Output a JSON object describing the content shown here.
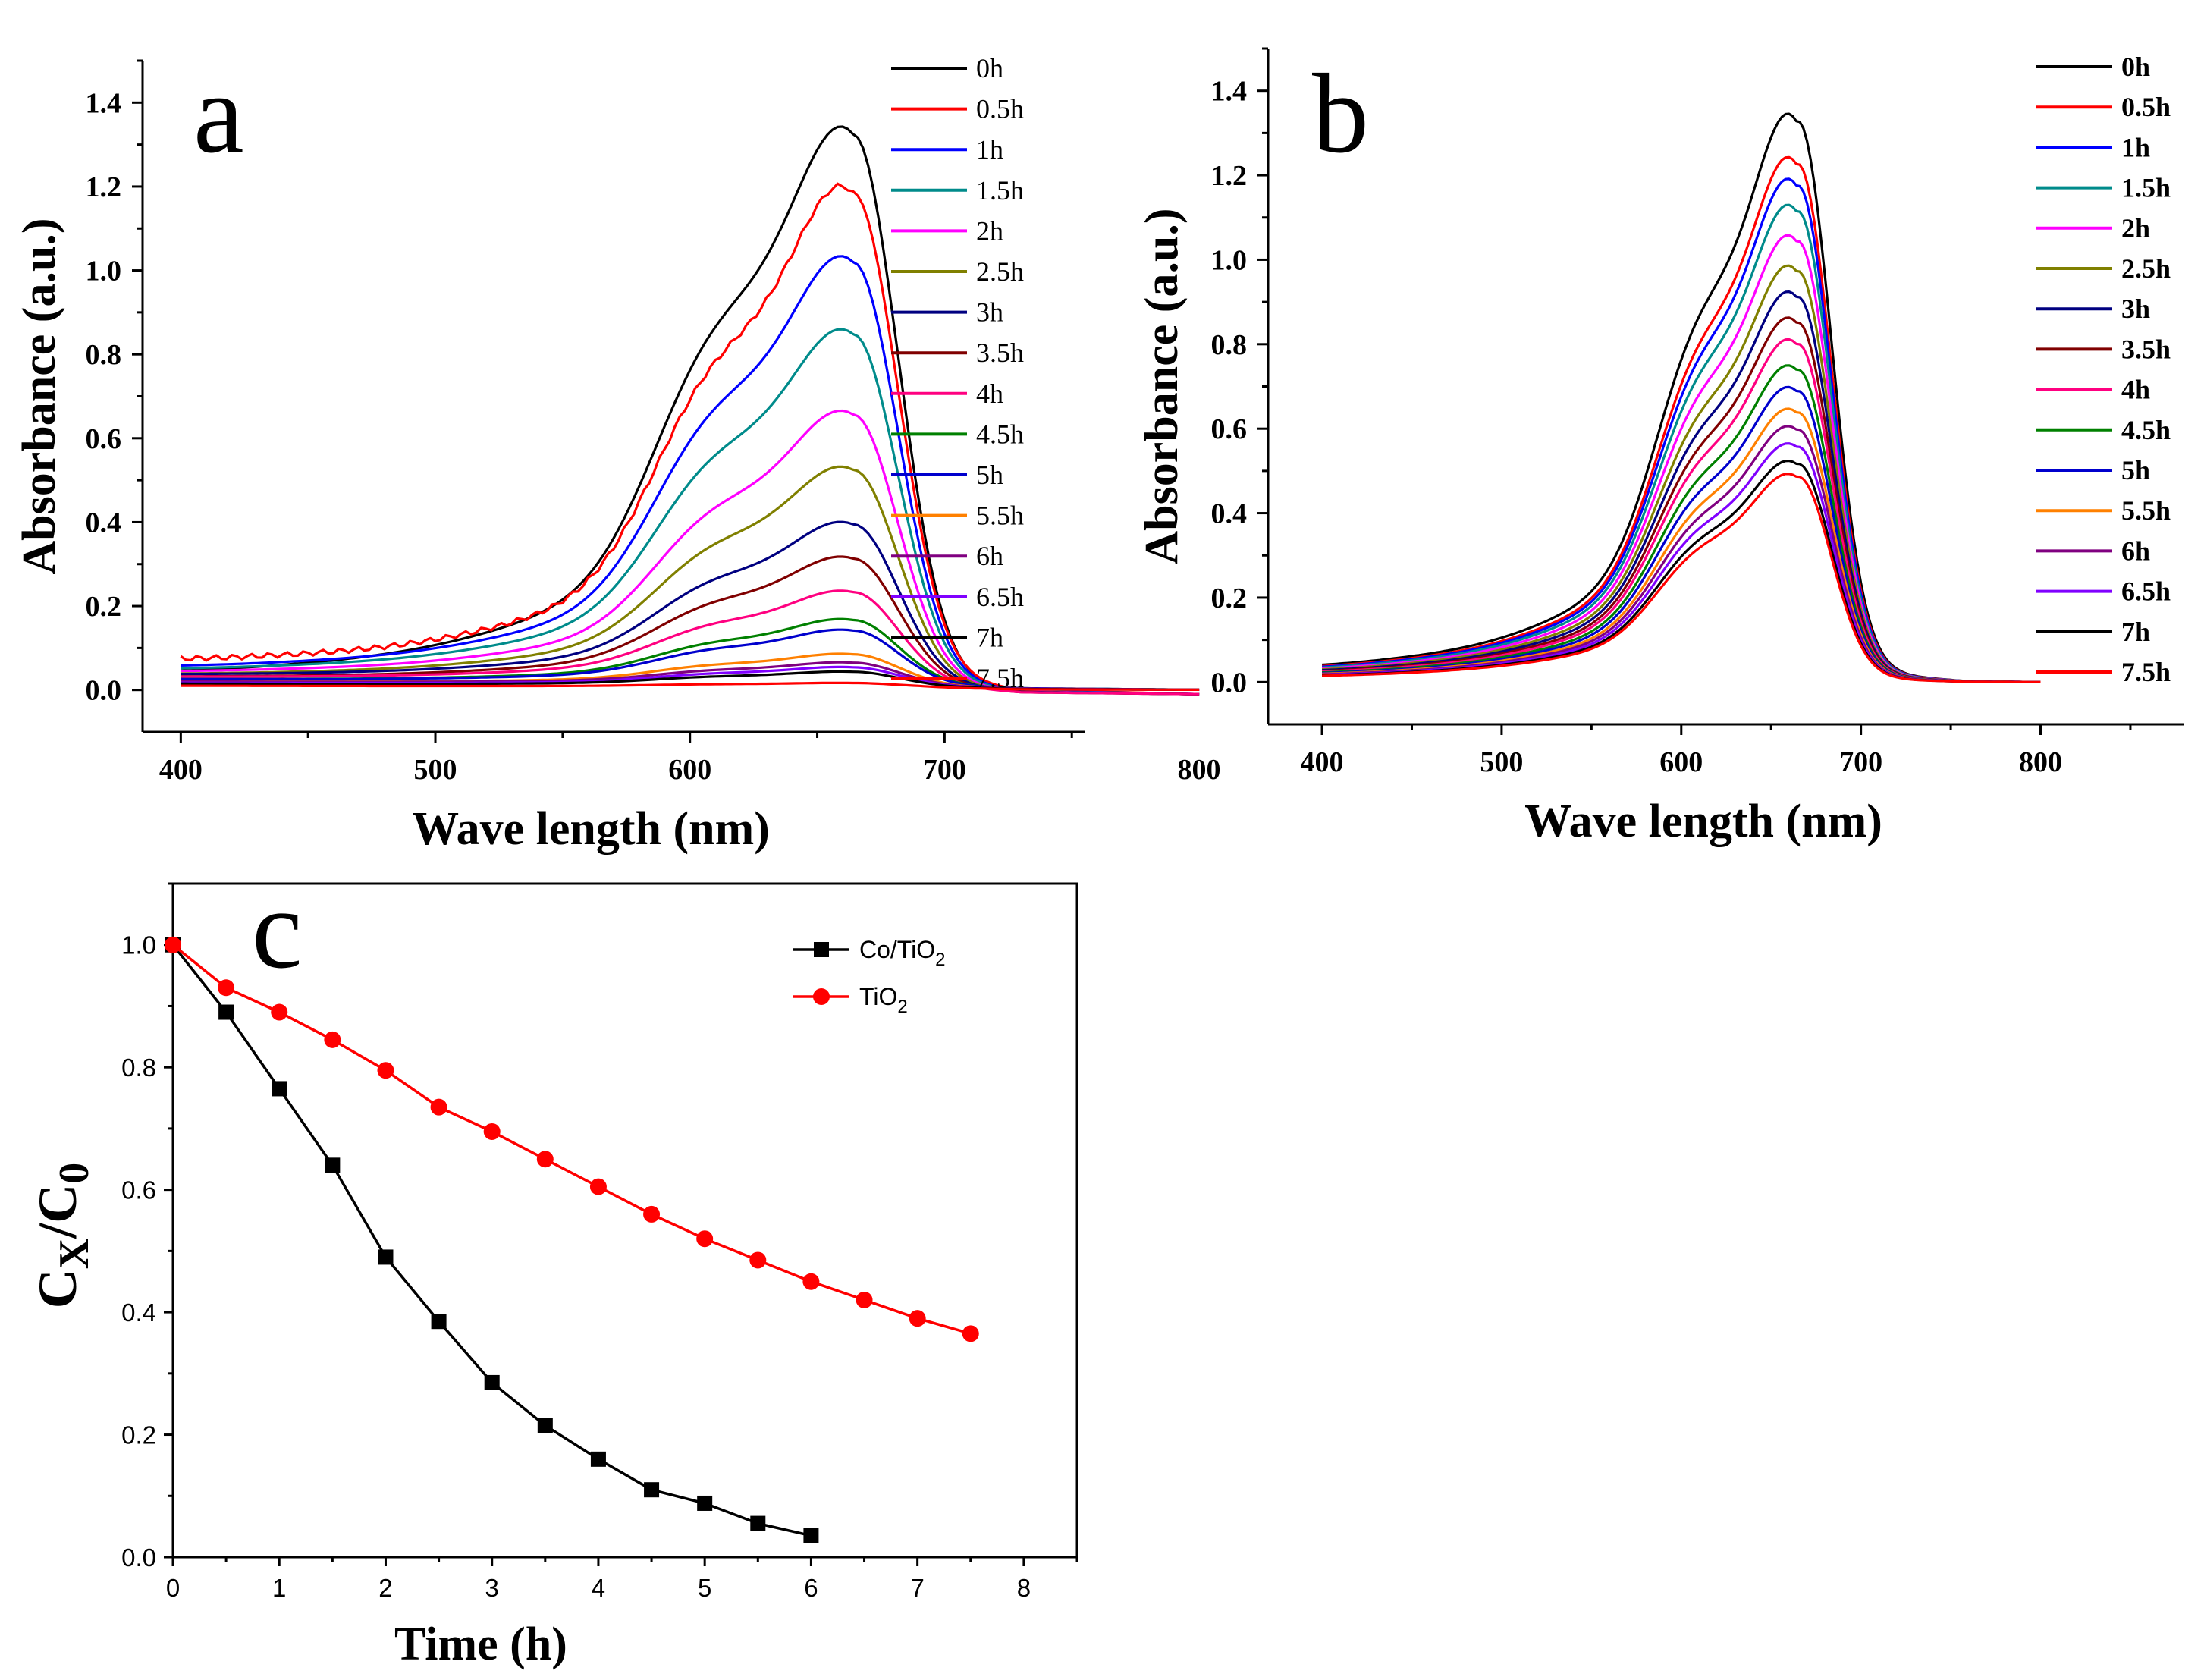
{
  "chart_data": [
    {
      "panel": "a",
      "type": "line",
      "xlabel": "Wave length  (nm)",
      "ylabel": "Absorbance (a.u.)",
      "xlim": [
        385,
        755
      ],
      "ylim": [
        -0.1,
        1.5
      ],
      "xticks": [
        400,
        500,
        600,
        700,
        800
      ],
      "yticks": [
        "0.0",
        "0.2",
        "0.4",
        "0.6",
        "0.8",
        "1.0",
        "1.2",
        "1.4"
      ],
      "peak_nm": 664,
      "series": [
        {
          "name": "0h",
          "color": "#000000",
          "peak": 1.31,
          "baseline": 0.03
        },
        {
          "name": "0.5h",
          "color": "#ff0000",
          "peak": 1.16,
          "baseline": 0.06
        },
        {
          "name": "1h",
          "color": "#0000ff",
          "peak": 1.0,
          "baseline": 0.045
        },
        {
          "name": "1.5h",
          "color": "#008b8b",
          "peak": 0.83,
          "baseline": 0.04
        },
        {
          "name": "2h",
          "color": "#ff00ff",
          "peak": 0.64,
          "baseline": 0.035
        },
        {
          "name": "2.5h",
          "color": "#808000",
          "peak": 0.51,
          "baseline": 0.03
        },
        {
          "name": "3h",
          "color": "#000080",
          "peak": 0.38,
          "baseline": 0.03
        },
        {
          "name": "3.5h",
          "color": "#800000",
          "peak": 0.3,
          "baseline": 0.025
        },
        {
          "name": "4h",
          "color": "#ff0080",
          "peak": 0.22,
          "baseline": 0.025
        },
        {
          "name": "4.5h",
          "color": "#008000",
          "peak": 0.155,
          "baseline": 0.02
        },
        {
          "name": "5h",
          "color": "#0000cd",
          "peak": 0.13,
          "baseline": 0.02
        },
        {
          "name": "5.5h",
          "color": "#ff8000",
          "peak": 0.075,
          "baseline": 0.015
        },
        {
          "name": "6h",
          "color": "#800080",
          "peak": 0.055,
          "baseline": 0.015
        },
        {
          "name": "6.5h",
          "color": "#8000ff",
          "peak": 0.045,
          "baseline": 0.012
        },
        {
          "name": "7h",
          "color": "#000000",
          "peak": 0.035,
          "baseline": 0.01
        },
        {
          "name": "7.5h",
          "color": "#ff0000",
          "peak": 0.01,
          "baseline": 0.005
        }
      ]
    },
    {
      "panel": "b",
      "type": "line",
      "xlabel": "Wave length  (nm)",
      "ylabel": "Absorbance (a.u.)",
      "xlim": [
        370,
        880
      ],
      "ylim": [
        -0.1,
        1.5
      ],
      "xticks": [
        400,
        500,
        600,
        700,
        800
      ],
      "yticks": [
        "0.0",
        "0.2",
        "0.4",
        "0.6",
        "0.8",
        "1.0",
        "1.2",
        "1.4"
      ],
      "peak_nm": 665,
      "series": [
        {
          "name": "0h",
          "color": "#000000",
          "peak": 1.31
        },
        {
          "name": "0.5h",
          "color": "#ff0000",
          "peak": 1.21
        },
        {
          "name": "1h",
          "color": "#0000ff",
          "peak": 1.16
        },
        {
          "name": "1.5h",
          "color": "#008b8b",
          "peak": 1.1
        },
        {
          "name": "2h",
          "color": "#ff00ff",
          "peak": 1.03
        },
        {
          "name": "2.5h",
          "color": "#808000",
          "peak": 0.96
        },
        {
          "name": "3h",
          "color": "#000080",
          "peak": 0.9
        },
        {
          "name": "3.5h",
          "color": "#800000",
          "peak": 0.84
        },
        {
          "name": "4h",
          "color": "#ff0080",
          "peak": 0.79
        },
        {
          "name": "4.5h",
          "color": "#008000",
          "peak": 0.73
        },
        {
          "name": "5h",
          "color": "#0000cd",
          "peak": 0.68
        },
        {
          "name": "5.5h",
          "color": "#ff8000",
          "peak": 0.63
        },
        {
          "name": "6h",
          "color": "#800080",
          "peak": 0.59
        },
        {
          "name": "6.5h",
          "color": "#8000ff",
          "peak": 0.55
        },
        {
          "name": "7h",
          "color": "#000000",
          "peak": 0.51
        },
        {
          "name": "7.5h",
          "color": "#ff0000",
          "peak": 0.48
        }
      ]
    },
    {
      "panel": "c",
      "type": "line",
      "xlabel": "Time  (h)",
      "ylabel_main": "C",
      "ylabel_sub1": "X",
      "ylabel_mid": "/C",
      "ylabel_sub2": "0",
      "xlim": [
        0,
        8.5
      ],
      "ylim": [
        0,
        1.1
      ],
      "xticks": [
        "0",
        "1",
        "2",
        "3",
        "4",
        "5",
        "6",
        "7",
        "8"
      ],
      "yticks": [
        "0.0",
        "0.2",
        "0.4",
        "0.6",
        "0.8",
        "1.0"
      ],
      "series": [
        {
          "name": "Co/TiO",
          "sub": "2",
          "color": "#000000",
          "marker": "square",
          "x": [
            0,
            0.5,
            1,
            1.5,
            2,
            2.5,
            3,
            3.5,
            4,
            4.5,
            5,
            5.5,
            6
          ],
          "values": [
            1.0,
            0.89,
            0.765,
            0.64,
            0.49,
            0.385,
            0.285,
            0.215,
            0.16,
            0.11,
            0.088,
            0.055,
            0.035
          ]
        },
        {
          "name": "TiO",
          "sub": "2",
          "color": "#ff0000",
          "marker": "circle",
          "x": [
            0,
            0.5,
            1,
            1.5,
            2,
            2.5,
            3,
            3.5,
            4,
            4.5,
            5,
            5.5,
            6,
            6.5,
            7,
            7.5
          ],
          "values": [
            1.0,
            0.93,
            0.89,
            0.845,
            0.795,
            0.735,
            0.695,
            0.65,
            0.605,
            0.56,
            0.52,
            0.485,
            0.45,
            0.42,
            0.39,
            0.365
          ]
        }
      ]
    }
  ]
}
